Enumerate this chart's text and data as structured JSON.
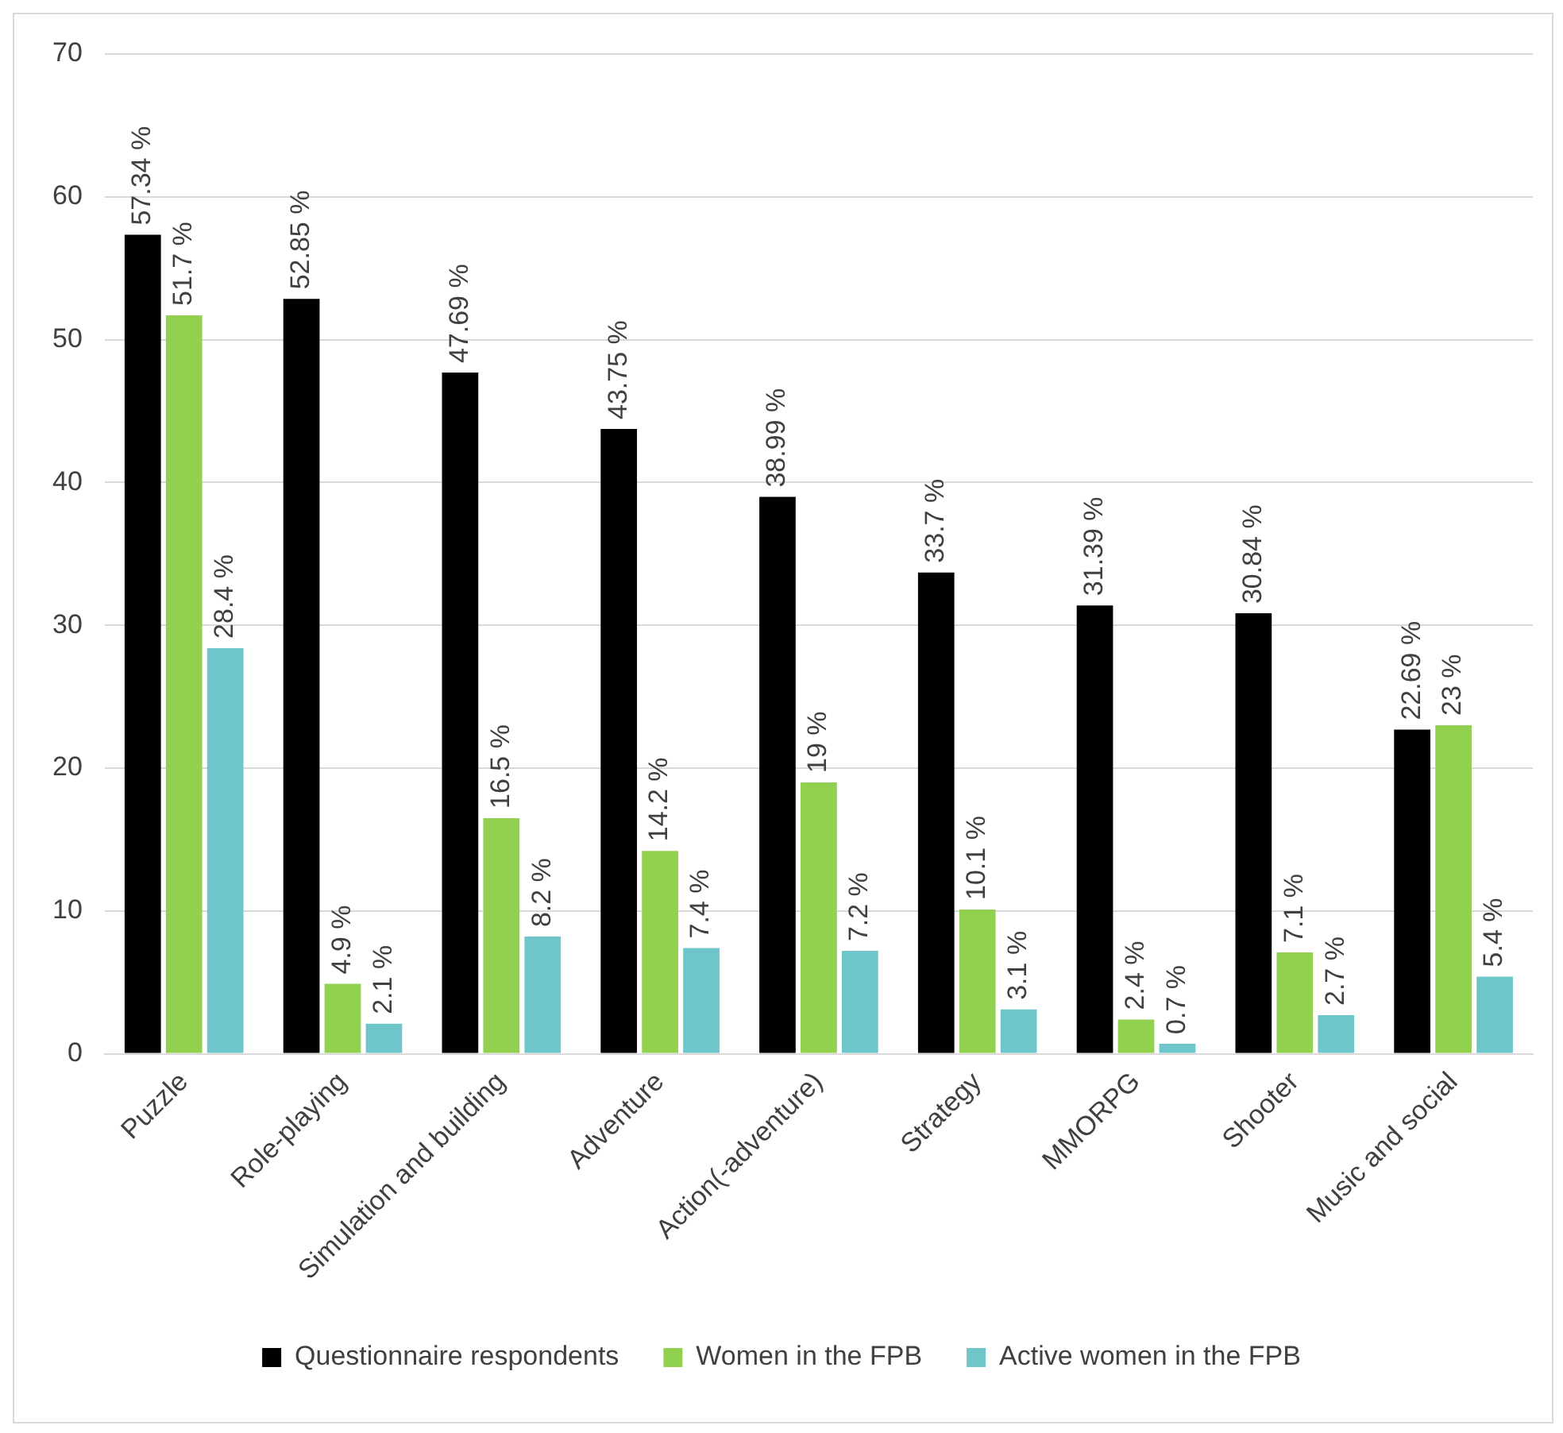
{
  "chart_data": {
    "type": "bar",
    "categories": [
      "Puzzle",
      "Role-playing",
      "Simulation and building",
      "Adventure",
      "Action(-adventure)",
      "Strategy",
      "MMORPG",
      "Shooter",
      "Music and social"
    ],
    "series": [
      {
        "name": "Questionnaire respondents",
        "color": "#000000",
        "values": [
          57.34,
          52.85,
          47.69,
          43.75,
          38.99,
          33.7,
          31.39,
          30.84,
          22.69
        ],
        "value_labels": [
          "57.34 %",
          "52.85 %",
          "47.69 %",
          "43.75 %",
          "38.99 %",
          "33.7 %",
          "31.39 %",
          "30.84 %",
          "22.69 %"
        ]
      },
      {
        "name": "Women in the FPB",
        "color": "#92d050",
        "values": [
          51.7,
          4.9,
          16.5,
          14.2,
          19,
          10.1,
          2.4,
          7.1,
          23
        ],
        "value_labels": [
          "51.7 %",
          "4.9 %",
          "16.5 %",
          "14.2 %",
          "19 %",
          "10.1 %",
          "2.4 %",
          "7.1 %",
          "23 %"
        ]
      },
      {
        "name": "Active women in the FPB",
        "color": "#6ec6ca",
        "values": [
          28.4,
          2.1,
          8.2,
          7.4,
          7.2,
          3.1,
          0.7,
          2.7,
          5.4
        ],
        "value_labels": [
          "28.4 %",
          "2.1 %",
          "8.2 %",
          "7.4 %",
          "7.2 %",
          "3.1 %",
          "0.7 %",
          "2.7 %",
          "5.4 %"
        ]
      }
    ],
    "ylim": [
      0,
      70
    ],
    "yticks": [
      0,
      10,
      20,
      30,
      40,
      50,
      60,
      70
    ],
    "grid": "y",
    "legend": "bottom"
  }
}
